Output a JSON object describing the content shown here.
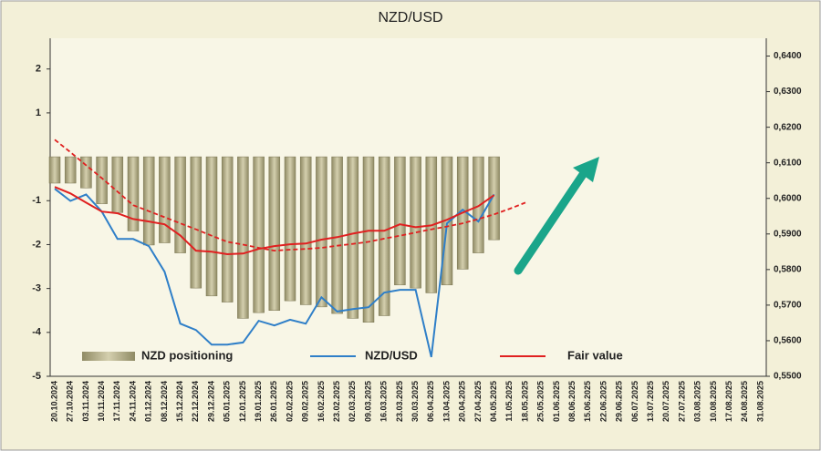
{
  "chart_data": {
    "type": "bar",
    "title": "NZD/USD",
    "categories": [
      "20.10.2024",
      "27.10.2024",
      "03.11.2024",
      "10.11.2024",
      "17.11.2024",
      "24.11.2024",
      "01.12.2024",
      "08.12.2024",
      "15.12.2024",
      "22.12.2024",
      "29.12.2024",
      "05.01.2025",
      "12.01.2025",
      "19.01.2025",
      "26.01.2025",
      "02.02.2025",
      "09.02.2025",
      "16.02.2025",
      "23.02.2025",
      "02.03.2025",
      "09.03.2025",
      "16.03.2025",
      "23.03.2025",
      "30.03.2025",
      "06.04.2025",
      "13.04.2025",
      "20.04.2025",
      "27.04.2025",
      "04.05.2025",
      "11.05.2025",
      "18.05.2025",
      "25.05.2025",
      "01.06.2025",
      "08.06.2025",
      "15.06.2025",
      "22.06.2025",
      "29.06.2025",
      "06.07.2025",
      "13.07.2025",
      "20.07.2025",
      "27.07.2025",
      "03.08.2025",
      "10.08.2025",
      "17.08.2025",
      "24.08.2025",
      "31.08.2025"
    ],
    "series": [
      {
        "name": "NZD positioning",
        "kind": "bar",
        "axis": "y",
        "color": "#b3ad84",
        "values": [
          -0.6,
          -0.6,
          -0.71,
          -1.07,
          -1.27,
          -1.69,
          -2.01,
          -1.96,
          -2.19,
          -2.99,
          -3.17,
          -3.31,
          -3.68,
          -3.55,
          -3.5,
          -3.28,
          -3.37,
          -3.42,
          -3.57,
          -3.68,
          -3.77,
          -3.62,
          -2.92,
          -2.99,
          -3.1,
          -2.92,
          -2.56,
          -2.19,
          -1.89,
          null,
          null,
          null,
          null,
          null,
          null,
          null,
          null,
          null,
          null,
          null,
          null,
          null,
          null,
          null,
          null,
          null
        ]
      },
      {
        "name": "NZD/USD",
        "kind": "line",
        "axis": "y2",
        "color": "#2f7fc8",
        "values": [
          0.6027,
          0.5993,
          0.6011,
          0.5963,
          0.5886,
          0.5886,
          0.5866,
          0.5794,
          0.5648,
          0.563,
          0.5589,
          0.5589,
          0.5595,
          0.5656,
          0.5643,
          0.5659,
          0.5648,
          0.5722,
          0.5682,
          0.5689,
          0.5694,
          0.5735,
          0.5743,
          0.5743,
          0.5554,
          0.593,
          0.5968,
          0.5935,
          0.6011,
          null,
          null,
          null,
          null,
          null,
          null,
          null,
          null,
          null,
          null,
          null,
          null,
          null,
          null,
          null,
          null,
          null
        ]
      },
      {
        "name": "Fair value",
        "kind": "line",
        "axis": "y2",
        "color": "#e02020",
        "values": [
          0.6032,
          0.6014,
          0.5988,
          0.5963,
          0.5958,
          0.5942,
          0.5935,
          0.5927,
          0.5896,
          0.5853,
          0.585,
          0.5843,
          0.5845,
          0.5858,
          0.5866,
          0.5871,
          0.5873,
          0.5884,
          0.5891,
          0.5901,
          0.5909,
          0.5909,
          0.5927,
          0.5919,
          0.5924,
          0.594,
          0.596,
          0.5978,
          0.6009,
          null,
          null,
          null,
          null,
          null,
          null,
          null,
          null,
          null,
          null,
          null,
          null,
          null,
          null,
          null,
          null,
          null
        ]
      },
      {
        "kind": "line",
        "axis": "y2",
        "color": "#e02020",
        "dashed": true,
        "values": [
          0.6165,
          0.613,
          0.6093,
          0.6057,
          0.6019,
          0.5981,
          0.5964,
          0.5947,
          0.593,
          0.5913,
          0.5895,
          0.5878,
          0.587,
          0.5861,
          0.5853,
          0.5856,
          0.5858,
          0.5861,
          0.5867,
          0.5872,
          0.5878,
          0.5887,
          0.5895,
          0.5904,
          0.5913,
          0.5921,
          0.593,
          0.5942,
          0.5955,
          0.5971,
          0.5988,
          null,
          null,
          null,
          null,
          null,
          null,
          null,
          null,
          null,
          null,
          null,
          null,
          null,
          null,
          null
        ]
      }
    ],
    "ylim": [
      -5,
      2.7
    ],
    "yticks": [
      2,
      1,
      -1,
      -2,
      -3,
      -4,
      -5
    ],
    "y2lim": [
      0.55,
      0.645
    ],
    "y2ticks": [
      {
        "value": 0.55,
        "label": "0,5500"
      },
      {
        "value": 0.56,
        "label": "0,5600"
      },
      {
        "value": 0.57,
        "label": "0,5700"
      },
      {
        "value": 0.58,
        "label": "0,5800"
      },
      {
        "value": 0.59,
        "label": "0,5900"
      },
      {
        "value": 0.6,
        "label": "0,6000"
      },
      {
        "value": 0.61,
        "label": "0,6100"
      },
      {
        "value": 0.62,
        "label": "0,6200"
      },
      {
        "value": 0.63,
        "label": "0,6300"
      },
      {
        "value": 0.64,
        "label": "0,6400"
      }
    ],
    "legend": "bottom"
  }
}
